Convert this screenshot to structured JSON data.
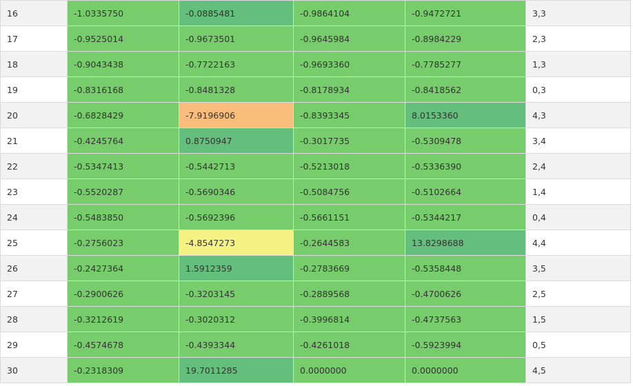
{
  "colors": {
    "green": "#77cd6b",
    "teal": "#63bf7b",
    "orange": "#f9bd7b",
    "yellow": "#f5f384",
    "row_odd": "#f2f2f2",
    "row_even": "#ffffff"
  },
  "rows": [
    {
      "idx": "16",
      "v": [
        "-1.0335750",
        "-0.0885481",
        "-0.9864104",
        "-0.9472721"
      ],
      "label": "3,3",
      "tones": [
        "c-base",
        "c-teal",
        "c-base",
        "c-base"
      ]
    },
    {
      "idx": "17",
      "v": [
        "-0.9525014",
        "-0.9673501",
        "-0.9645984",
        "-0.8984229"
      ],
      "label": "2,3",
      "tones": [
        "c-base",
        "c-base",
        "c-base",
        "c-base"
      ]
    },
    {
      "idx": "18",
      "v": [
        "-0.9043438",
        "-0.7722163",
        "-0.9693360",
        "-0.7785277"
      ],
      "label": "1,3",
      "tones": [
        "c-base",
        "c-base",
        "c-base",
        "c-base"
      ]
    },
    {
      "idx": "19",
      "v": [
        "-0.8316168",
        "-0.8481328",
        "-0.8178934",
        "-0.8418562"
      ],
      "label": "0,3",
      "tones": [
        "c-base",
        "c-base",
        "c-base",
        "c-base"
      ]
    },
    {
      "idx": "20",
      "v": [
        "-0.6828429",
        "-7.9196906",
        "-0.8393345",
        "8.0153360"
      ],
      "label": "4,3",
      "tones": [
        "c-base",
        "c-orange",
        "c-base",
        "c-teal"
      ]
    },
    {
      "idx": "21",
      "v": [
        "-0.4245764",
        "0.8750947",
        "-0.3017735",
        "-0.5309478"
      ],
      "label": "3,4",
      "tones": [
        "c-base",
        "c-teal",
        "c-base",
        "c-base"
      ]
    },
    {
      "idx": "22",
      "v": [
        "-0.5347413",
        "-0.5442713",
        "-0.5213018",
        "-0.5336390"
      ],
      "label": "2,4",
      "tones": [
        "c-base",
        "c-base",
        "c-base",
        "c-base"
      ]
    },
    {
      "idx": "23",
      "v": [
        "-0.5520287",
        "-0.5690346",
        "-0.5084756",
        "-0.5102664"
      ],
      "label": "1,4",
      "tones": [
        "c-base",
        "c-base",
        "c-base",
        "c-base"
      ]
    },
    {
      "idx": "24",
      "v": [
        "-0.5483850",
        "-0.5692396",
        "-0.5661151",
        "-0.5344217"
      ],
      "label": "0,4",
      "tones": [
        "c-base",
        "c-base",
        "c-base",
        "c-base"
      ]
    },
    {
      "idx": "25",
      "v": [
        "-0.2756023",
        "-4.8547273",
        "-0.2644583",
        "13.8298688"
      ],
      "label": "4,4",
      "tones": [
        "c-base",
        "c-yellow",
        "c-base",
        "c-teal"
      ]
    },
    {
      "idx": "26",
      "v": [
        "-0.2427364",
        "1.5912359",
        "-0.2783669",
        "-0.5358448"
      ],
      "label": "3,5",
      "tones": [
        "c-base",
        "c-teal",
        "c-base",
        "c-base"
      ]
    },
    {
      "idx": "27",
      "v": [
        "-0.2900626",
        "-0.3203145",
        "-0.2889568",
        "-0.4700626"
      ],
      "label": "2,5",
      "tones": [
        "c-base",
        "c-base",
        "c-base",
        "c-base"
      ]
    },
    {
      "idx": "28",
      "v": [
        "-0.3212619",
        "-0.3020312",
        "-0.3996814",
        "-0.4737563"
      ],
      "label": "1,5",
      "tones": [
        "c-base",
        "c-base",
        "c-base",
        "c-base"
      ]
    },
    {
      "idx": "29",
      "v": [
        "-0.4574678",
        "-0.4393344",
        "-0.4261018",
        "-0.5923994"
      ],
      "label": "0,5",
      "tones": [
        "c-base",
        "c-base",
        "c-base",
        "c-base"
      ]
    },
    {
      "idx": "30",
      "v": [
        "-0.2318309",
        "19.7011285",
        "0.0000000",
        "0.0000000"
      ],
      "label": "4,5",
      "tones": [
        "c-base",
        "c-teal",
        "c-base",
        "c-base"
      ]
    }
  ]
}
